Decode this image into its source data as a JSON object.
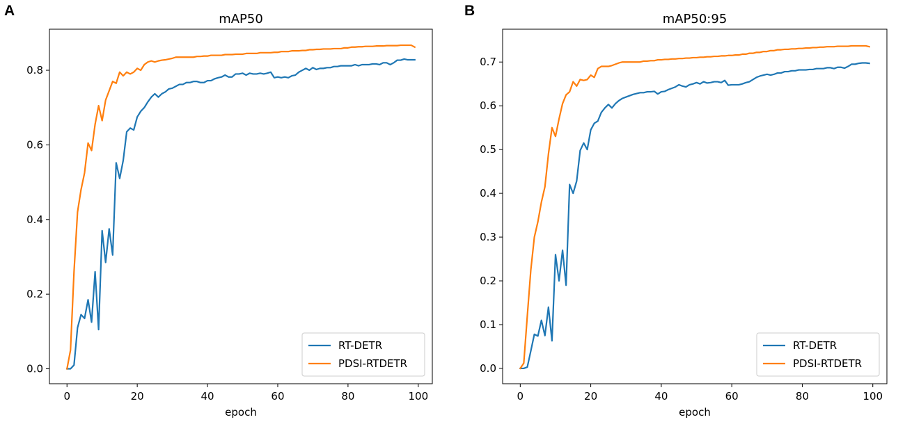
{
  "chart_data": [
    {
      "panel": "A",
      "type": "line",
      "title": "mAP50",
      "xlabel": "epoch",
      "ylabel": "",
      "xlim": [
        -5,
        104
      ],
      "ylim": [
        -0.04,
        0.91
      ],
      "xticks": [
        0,
        20,
        40,
        60,
        80,
        100
      ],
      "yticks": [
        0.0,
        0.2,
        0.4,
        0.6,
        0.8
      ],
      "ytick_labels": [
        "0.0",
        "0.2",
        "0.4",
        "0.6",
        "0.8"
      ],
      "grid": false,
      "legend_position": "bottom-right",
      "series": [
        {
          "name": "RT-DETR",
          "color": "#1f77b4",
          "x": [
            0,
            1,
            2,
            3,
            4,
            5,
            6,
            7,
            8,
            9,
            10,
            11,
            12,
            13,
            14,
            15,
            16,
            17,
            18,
            19,
            20,
            21,
            22,
            23,
            24,
            25,
            26,
            27,
            28,
            29,
            30,
            31,
            32,
            33,
            34,
            35,
            36,
            37,
            38,
            39,
            40,
            41,
            42,
            43,
            44,
            45,
            46,
            47,
            48,
            49,
            50,
            51,
            52,
            53,
            54,
            55,
            56,
            57,
            58,
            59,
            60,
            61,
            62,
            63,
            64,
            65,
            66,
            67,
            68,
            69,
            70,
            71,
            72,
            73,
            74,
            75,
            76,
            77,
            78,
            79,
            80,
            81,
            82,
            83,
            84,
            85,
            86,
            87,
            88,
            89,
            90,
            91,
            92,
            93,
            94,
            95,
            96,
            97,
            98,
            99
          ],
          "values": [
            0.0,
            0.0,
            0.01,
            0.11,
            0.145,
            0.135,
            0.185,
            0.125,
            0.26,
            0.105,
            0.37,
            0.285,
            0.375,
            0.305,
            0.552,
            0.51,
            0.558,
            0.635,
            0.645,
            0.64,
            0.675,
            0.69,
            0.7,
            0.715,
            0.728,
            0.737,
            0.728,
            0.737,
            0.742,
            0.75,
            0.752,
            0.757,
            0.762,
            0.762,
            0.767,
            0.767,
            0.77,
            0.77,
            0.767,
            0.767,
            0.772,
            0.772,
            0.777,
            0.78,
            0.782,
            0.787,
            0.782,
            0.782,
            0.79,
            0.79,
            0.792,
            0.787,
            0.792,
            0.79,
            0.79,
            0.792,
            0.79,
            0.792,
            0.795,
            0.78,
            0.782,
            0.78,
            0.782,
            0.78,
            0.785,
            0.787,
            0.795,
            0.8,
            0.805,
            0.8,
            0.807,
            0.802,
            0.805,
            0.805,
            0.807,
            0.807,
            0.81,
            0.81,
            0.812,
            0.812,
            0.812,
            0.812,
            0.815,
            0.812,
            0.815,
            0.815,
            0.815,
            0.817,
            0.817,
            0.815,
            0.82,
            0.82,
            0.815,
            0.82,
            0.827,
            0.827,
            0.83,
            0.828,
            0.828,
            0.828
          ]
        },
        {
          "name": "PDSI-RTDETR",
          "color": "#ff7f0e",
          "x": [
            0,
            1,
            2,
            3,
            4,
            5,
            6,
            7,
            8,
            9,
            10,
            11,
            12,
            13,
            14,
            15,
            16,
            17,
            18,
            19,
            20,
            21,
            22,
            23,
            24,
            25,
            26,
            27,
            28,
            29,
            30,
            31,
            32,
            33,
            34,
            35,
            36,
            37,
            38,
            39,
            40,
            41,
            42,
            43,
            44,
            45,
            46,
            47,
            48,
            49,
            50,
            51,
            52,
            53,
            54,
            55,
            56,
            57,
            58,
            59,
            60,
            61,
            62,
            63,
            64,
            65,
            66,
            67,
            68,
            69,
            70,
            71,
            72,
            73,
            74,
            75,
            76,
            77,
            78,
            79,
            80,
            81,
            82,
            83,
            84,
            85,
            86,
            87,
            88,
            89,
            90,
            91,
            92,
            93,
            94,
            95,
            96,
            97,
            98,
            99
          ],
          "values": [
            0.0,
            0.05,
            0.26,
            0.42,
            0.48,
            0.525,
            0.605,
            0.585,
            0.655,
            0.705,
            0.665,
            0.72,
            0.745,
            0.77,
            0.765,
            0.795,
            0.785,
            0.795,
            0.79,
            0.795,
            0.805,
            0.8,
            0.815,
            0.822,
            0.825,
            0.822,
            0.825,
            0.827,
            0.828,
            0.83,
            0.832,
            0.835,
            0.835,
            0.835,
            0.835,
            0.835,
            0.835,
            0.837,
            0.837,
            0.838,
            0.838,
            0.84,
            0.84,
            0.84,
            0.84,
            0.842,
            0.842,
            0.842,
            0.843,
            0.843,
            0.843,
            0.845,
            0.845,
            0.845,
            0.845,
            0.847,
            0.847,
            0.847,
            0.847,
            0.848,
            0.848,
            0.85,
            0.85,
            0.85,
            0.852,
            0.852,
            0.852,
            0.853,
            0.853,
            0.855,
            0.855,
            0.856,
            0.856,
            0.857,
            0.857,
            0.857,
            0.858,
            0.858,
            0.858,
            0.86,
            0.86,
            0.862,
            0.862,
            0.863,
            0.863,
            0.864,
            0.864,
            0.864,
            0.865,
            0.865,
            0.865,
            0.866,
            0.866,
            0.866,
            0.866,
            0.867,
            0.867,
            0.867,
            0.867,
            0.862
          ]
        }
      ]
    },
    {
      "panel": "B",
      "type": "line",
      "title": "mAP50:95",
      "xlabel": "epoch",
      "ylabel": "",
      "xlim": [
        -5,
        104
      ],
      "ylim": [
        -0.035,
        0.775
      ],
      "xticks": [
        0,
        20,
        40,
        60,
        80,
        100
      ],
      "yticks": [
        0.0,
        0.1,
        0.2,
        0.3,
        0.4,
        0.5,
        0.6,
        0.7
      ],
      "ytick_labels": [
        "0.0",
        "0.1",
        "0.2",
        "0.3",
        "0.4",
        "0.5",
        "0.6",
        "0.7"
      ],
      "grid": false,
      "legend_position": "bottom-right",
      "series": [
        {
          "name": "RT-DETR",
          "color": "#1f77b4",
          "x": [
            0,
            1,
            2,
            3,
            4,
            5,
            6,
            7,
            8,
            9,
            10,
            11,
            12,
            13,
            14,
            15,
            16,
            17,
            18,
            19,
            20,
            21,
            22,
            23,
            24,
            25,
            26,
            27,
            28,
            29,
            30,
            31,
            32,
            33,
            34,
            35,
            36,
            37,
            38,
            39,
            40,
            41,
            42,
            43,
            44,
            45,
            46,
            47,
            48,
            49,
            50,
            51,
            52,
            53,
            54,
            55,
            56,
            57,
            58,
            59,
            60,
            61,
            62,
            63,
            64,
            65,
            66,
            67,
            68,
            69,
            70,
            71,
            72,
            73,
            74,
            75,
            76,
            77,
            78,
            79,
            80,
            81,
            82,
            83,
            84,
            85,
            86,
            87,
            88,
            89,
            90,
            91,
            92,
            93,
            94,
            95,
            96,
            97,
            98,
            99
          ],
          "values": [
            0.0,
            0.0,
            0.003,
            0.04,
            0.078,
            0.074,
            0.11,
            0.075,
            0.14,
            0.063,
            0.26,
            0.2,
            0.27,
            0.19,
            0.42,
            0.4,
            0.428,
            0.498,
            0.515,
            0.5,
            0.545,
            0.56,
            0.565,
            0.585,
            0.595,
            0.603,
            0.595,
            0.605,
            0.612,
            0.617,
            0.62,
            0.623,
            0.626,
            0.628,
            0.63,
            0.63,
            0.632,
            0.632,
            0.633,
            0.627,
            0.632,
            0.633,
            0.637,
            0.64,
            0.643,
            0.648,
            0.645,
            0.643,
            0.648,
            0.65,
            0.653,
            0.65,
            0.655,
            0.652,
            0.653,
            0.655,
            0.655,
            0.653,
            0.658,
            0.647,
            0.648,
            0.648,
            0.648,
            0.65,
            0.653,
            0.655,
            0.66,
            0.665,
            0.668,
            0.67,
            0.672,
            0.67,
            0.672,
            0.675,
            0.675,
            0.678,
            0.678,
            0.68,
            0.68,
            0.682,
            0.682,
            0.682,
            0.683,
            0.683,
            0.685,
            0.685,
            0.685,
            0.687,
            0.687,
            0.685,
            0.688,
            0.688,
            0.686,
            0.69,
            0.695,
            0.695,
            0.697,
            0.698,
            0.698,
            0.697
          ]
        },
        {
          "name": "PDSI-RTDETR",
          "color": "#ff7f0e",
          "x": [
            0,
            1,
            2,
            3,
            4,
            5,
            6,
            7,
            8,
            9,
            10,
            11,
            12,
            13,
            14,
            15,
            16,
            17,
            18,
            19,
            20,
            21,
            22,
            23,
            24,
            25,
            26,
            27,
            28,
            29,
            30,
            31,
            32,
            33,
            34,
            35,
            36,
            37,
            38,
            39,
            40,
            41,
            42,
            43,
            44,
            45,
            46,
            47,
            48,
            49,
            50,
            51,
            52,
            53,
            54,
            55,
            56,
            57,
            58,
            59,
            60,
            61,
            62,
            63,
            64,
            65,
            66,
            67,
            68,
            69,
            70,
            71,
            72,
            73,
            74,
            75,
            76,
            77,
            78,
            79,
            80,
            81,
            82,
            83,
            84,
            85,
            86,
            87,
            88,
            89,
            90,
            91,
            92,
            93,
            94,
            95,
            96,
            97,
            98,
            99
          ],
          "values": [
            0.0,
            0.012,
            0.12,
            0.225,
            0.3,
            0.335,
            0.38,
            0.415,
            0.49,
            0.55,
            0.53,
            0.57,
            0.605,
            0.625,
            0.632,
            0.655,
            0.645,
            0.66,
            0.658,
            0.66,
            0.67,
            0.665,
            0.685,
            0.69,
            0.69,
            0.69,
            0.692,
            0.695,
            0.698,
            0.7,
            0.7,
            0.7,
            0.7,
            0.7,
            0.7,
            0.702,
            0.702,
            0.703,
            0.703,
            0.705,
            0.705,
            0.706,
            0.706,
            0.707,
            0.707,
            0.708,
            0.708,
            0.709,
            0.709,
            0.71,
            0.71,
            0.711,
            0.711,
            0.712,
            0.712,
            0.713,
            0.713,
            0.714,
            0.714,
            0.715,
            0.715,
            0.716,
            0.716,
            0.718,
            0.718,
            0.72,
            0.72,
            0.722,
            0.722,
            0.724,
            0.724,
            0.726,
            0.726,
            0.728,
            0.728,
            0.729,
            0.729,
            0.73,
            0.73,
            0.731,
            0.731,
            0.732,
            0.732,
            0.733,
            0.733,
            0.734,
            0.734,
            0.735,
            0.735,
            0.735,
            0.736,
            0.736,
            0.736,
            0.736,
            0.737,
            0.737,
            0.737,
            0.737,
            0.737,
            0.735
          ]
        }
      ]
    }
  ]
}
